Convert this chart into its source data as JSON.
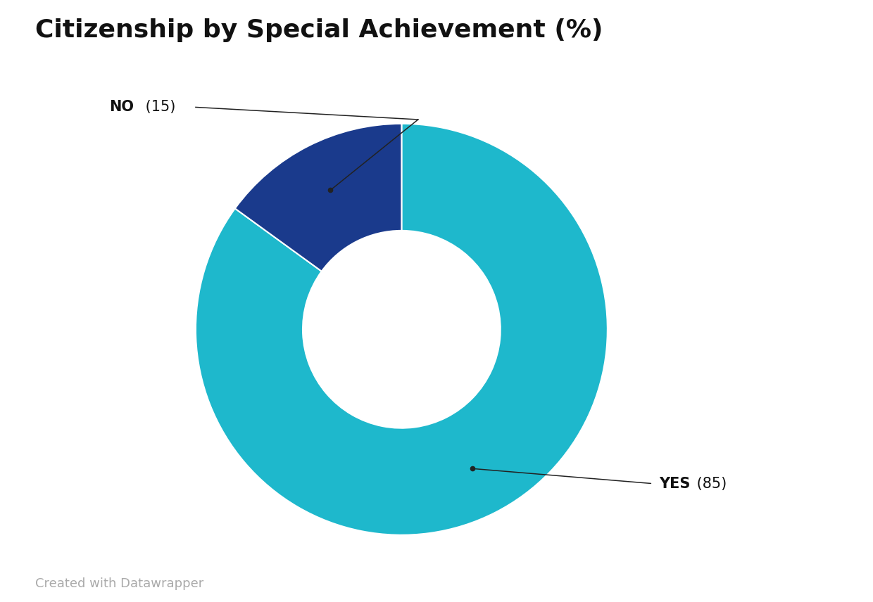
{
  "title": "Citizenship by Special Achievement (%)",
  "slices": [
    85,
    15
  ],
  "labels": [
    "YES",
    "NO"
  ],
  "values_display": [
    85,
    15
  ],
  "colors": [
    "#1eb8cc",
    "#1a3a8c"
  ],
  "background_color": "#ffffff",
  "title_fontsize": 26,
  "annotation_fontsize": 15,
  "footer_text": "Created with Datawrapper",
  "footer_color": "#aaaaaa",
  "footer_fontsize": 13,
  "donut_width": 0.52,
  "annotation_color": "#222222"
}
